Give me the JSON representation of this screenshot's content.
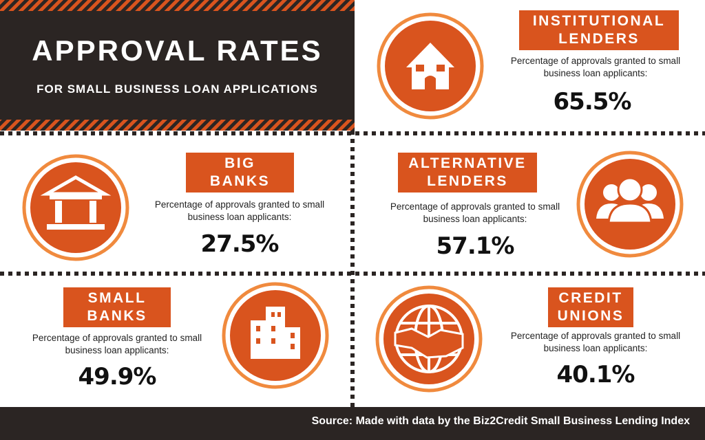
{
  "header": {
    "title": "APPROVAL RATES",
    "subtitle": "FOR SMALL BUSINESS LOAN APPLICATIONS"
  },
  "panels": [
    {
      "label": [
        "INSTITUTIONAL",
        "LENDERS"
      ],
      "description": "Percentage of approvals granted to small business loan applicants:",
      "value": "65.5%"
    },
    {
      "label": [
        "BIG",
        "BANKS"
      ],
      "description": "Percentage of approvals granted to small business loan applicants:",
      "value": "27.5%"
    },
    {
      "label": [
        "ALTERNATIVE",
        "LENDERS"
      ],
      "description": "Percentage of approvals granted to small business loan applicants:",
      "value": "57.1%"
    },
    {
      "label": [
        "SMALL",
        "BANKS"
      ],
      "description": "Percentage of approvals granted to small business loan applicants:",
      "value": "49.9%"
    },
    {
      "label": [
        "CREDIT",
        "UNIONS"
      ],
      "description": "Percentage of approvals granted to small business loan applicants:",
      "value": "40.1%"
    }
  ],
  "footer": {
    "source": "Source: Made with data by the Biz2Credit Small Business Lending Index"
  }
}
